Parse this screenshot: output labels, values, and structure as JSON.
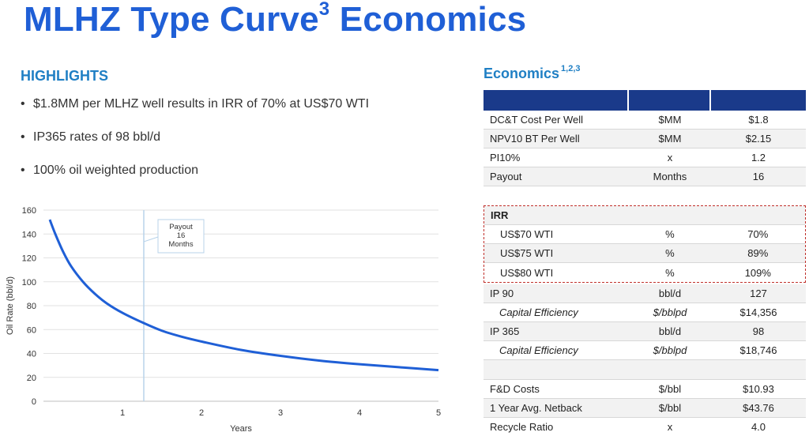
{
  "page": {
    "title": "MLHZ Type Curve",
    "title_sup": "3",
    "title_suffix": " Economics"
  },
  "highlights": {
    "heading": "HIGHLIGHTS",
    "items": [
      "$1.8MM per MLHZ well results in IRR of 70% at US$70 WTI",
      "IP365 rates of 98 bbl/d",
      "100% oil weighted production"
    ]
  },
  "economics": {
    "heading": "Economics",
    "heading_sup": "1,2,3",
    "rows_top": [
      {
        "label": "DC&T Cost Per Well",
        "unit": "$MM",
        "value": "$1.8"
      },
      {
        "label": "NPV10 BT Per Well",
        "unit": "$MM",
        "value": "$2.15"
      },
      {
        "label": "PI10%",
        "unit": "x",
        "value": "1.2"
      },
      {
        "label": "Payout",
        "unit": "Months",
        "value": "16"
      }
    ],
    "irr": {
      "label": "IRR",
      "rows": [
        {
          "label": "US$70 WTI",
          "unit": "%",
          "value": "70%"
        },
        {
          "label": "US$75 WTI",
          "unit": "%",
          "value": "89%"
        },
        {
          "label": "US$80 WTI",
          "unit": "%",
          "value": "109%"
        }
      ]
    },
    "rows_mid": [
      {
        "label": "IP 90",
        "unit": "bbl/d",
        "value": "127"
      },
      {
        "label": "Capital Efficiency",
        "unit": "$/bblpd",
        "value": "$14,356"
      },
      {
        "label": "IP 365",
        "unit": "bbl/d",
        "value": "98"
      },
      {
        "label": "Capital Efficiency",
        "unit": "$/bblpd",
        "value": "$18,746"
      }
    ],
    "rows_bottom": [
      {
        "label": "F&D Costs",
        "unit": "$/bbl",
        "value": "$10.93"
      },
      {
        "label": "1 Year Avg. Netback",
        "unit": "$/bbl",
        "value": "$43.76"
      },
      {
        "label": "Recycle Ratio",
        "unit": "x",
        "value": "4.0"
      }
    ]
  },
  "colors": {
    "title": "#1f5fd6",
    "heading": "#1f7fc4",
    "table_header": "#1a3a8a",
    "curve": "#1f5fd6",
    "irr_border": "#c0302b"
  },
  "chart_data": {
    "type": "line",
    "xlabel": "Years",
    "ylabel": "Oil Rate (bbl/d)",
    "xlim": [
      0,
      5
    ],
    "ylim": [
      0,
      160
    ],
    "xticks": [
      "1",
      "2",
      "3",
      "4",
      "5"
    ],
    "xtick_values": [
      1,
      2,
      3,
      4,
      5
    ],
    "yticks": [
      "0",
      "20",
      "40",
      "60",
      "80",
      "100",
      "120",
      "140",
      "160"
    ],
    "ytick_values": [
      0,
      20,
      40,
      60,
      80,
      100,
      120,
      140,
      160
    ],
    "grid": true,
    "series": [
      {
        "x": [
          0.08,
          0.15,
          0.25,
          0.35,
          0.5,
          0.65,
          0.8,
          1.0,
          1.25,
          1.5,
          1.75,
          2.0,
          2.5,
          3.0,
          3.5,
          4.0,
          4.5,
          5.0
        ],
        "values": [
          152,
          140,
          125,
          113,
          100,
          90,
          82,
          74,
          66,
          59,
          54,
          50,
          43,
          38,
          34,
          31,
          28.5,
          26
        ]
      }
    ],
    "annotation": {
      "x": 1.27,
      "lines": [
        "Payout",
        "16",
        "Months"
      ]
    }
  }
}
